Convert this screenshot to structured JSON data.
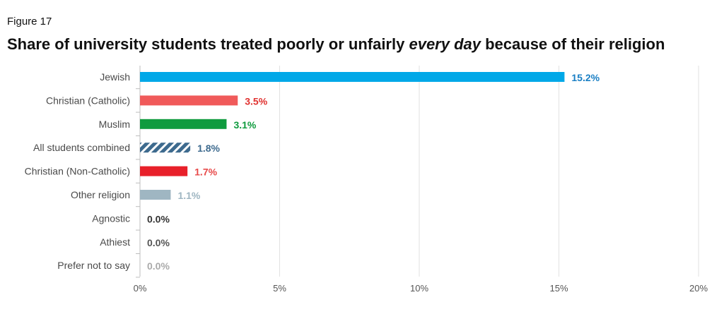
{
  "figure_label": "Figure 17",
  "title": {
    "before": "Share of university students treated poorly or unfairly ",
    "emphasis": "every day",
    "after": " because of their religion"
  },
  "chart_data": {
    "type": "bar",
    "orientation": "horizontal",
    "categories": [
      "Jewish",
      "Christian (Catholic)",
      "Muslim",
      "All students combined",
      "Christian (Non-Catholic)",
      "Other religion",
      "Agnostic",
      "Athiest",
      "Prefer not to say"
    ],
    "values": [
      15.2,
      3.5,
      3.1,
      1.8,
      1.7,
      1.1,
      0.0,
      0.0,
      0.0
    ],
    "value_labels": [
      "15.2%",
      "3.5%",
      "3.1%",
      "1.8%",
      "1.7%",
      "1.1%",
      "0.0%",
      "0.0%",
      "0.0%"
    ],
    "bar_colors": [
      "#00a8e8",
      "#f05a5a",
      "#0f9b3e",
      "#3d6a8e",
      "#e8202a",
      "#9fb6c2",
      "#333333",
      "#555555",
      "#999999"
    ],
    "label_colors": [
      "#1a7fc4",
      "#e0312f",
      "#0f9b3e",
      "#3d6a8e",
      "#e84a4a",
      "#9fb6c2",
      "#333333",
      "#555555",
      "#aaaaaa"
    ],
    "hatched": [
      false,
      false,
      false,
      true,
      false,
      false,
      false,
      false,
      false
    ],
    "xticks": [
      0,
      5,
      10,
      15,
      20
    ],
    "xtick_labels": [
      "0%",
      "5%",
      "10%",
      "15%",
      "20%"
    ],
    "xlim": [
      0,
      20
    ],
    "grid": true,
    "xlabel": "",
    "ylabel": ""
  }
}
